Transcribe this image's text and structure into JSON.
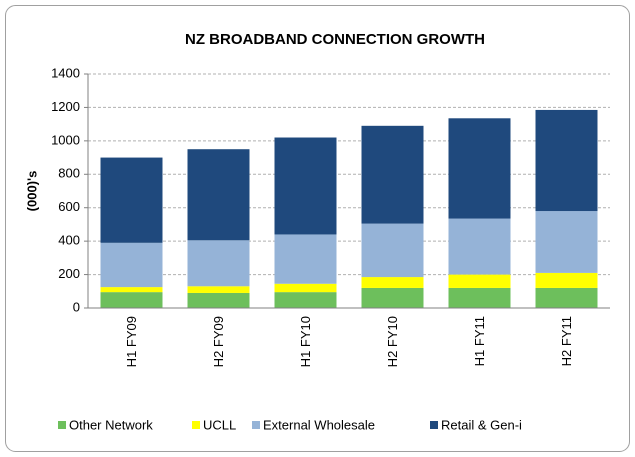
{
  "chart_data": {
    "type": "stacked_bar",
    "title": "NZ BROADBAND CONNECTION GROWTH",
    "y_label": "(000)'s",
    "categories": [
      "H1 FY09",
      "H2 FY09",
      "H1 FY10",
      "H2 FY10",
      "H1 FY11",
      "H2 FY11"
    ],
    "series": [
      {
        "name": "Other Network",
        "color": "#6dbf5c",
        "values": [
          95,
          90,
          95,
          120,
          120,
          120
        ]
      },
      {
        "name": "UCLL",
        "color": "#ffff00",
        "values": [
          30,
          40,
          50,
          65,
          80,
          90
        ]
      },
      {
        "name": "External Wholesale",
        "color": "#95b3d7",
        "values": [
          265,
          275,
          295,
          320,
          335,
          370
        ]
      },
      {
        "name": "Retail & Gen-i",
        "color": "#1f497d",
        "values": [
          510,
          545,
          580,
          585,
          600,
          605
        ]
      }
    ],
    "ylim": [
      0,
      1400
    ],
    "yticks": [
      0,
      200,
      400,
      600,
      800,
      1000,
      1200,
      1400
    ],
    "grid": true,
    "legend": "bottom"
  }
}
